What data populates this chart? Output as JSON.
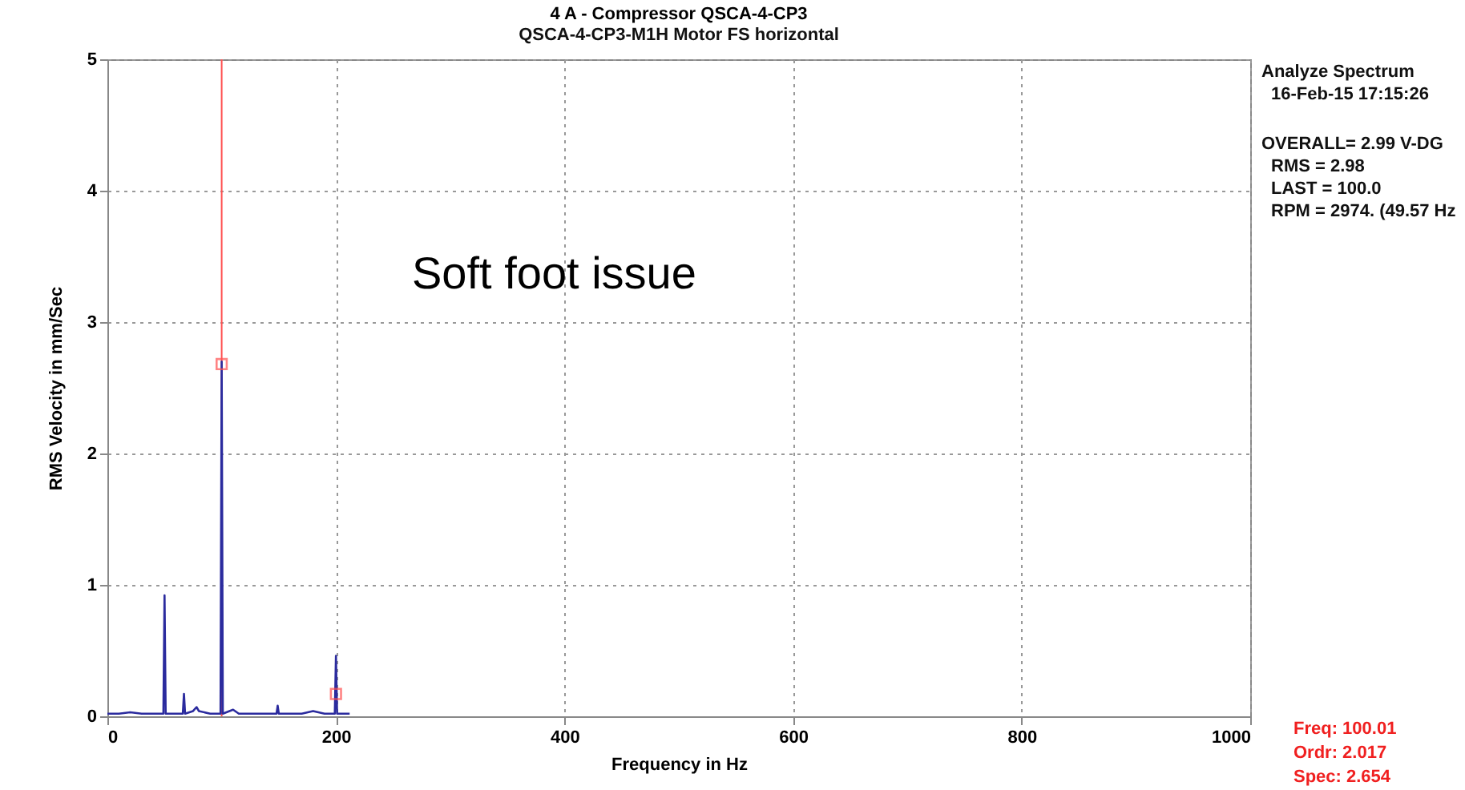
{
  "chart_data": {
    "type": "line",
    "title": "4  A - Compressor      QSCA-4-CP3",
    "subtitle": "QSCA-4-CP3-M1H   Motor FS horizontal",
    "xlabel": "Frequency in Hz",
    "ylabel": "RMS Velocity in mm/Sec",
    "series": [
      {
        "color": "#2b2b9e",
        "marker": "none",
        "x": [
          0,
          10,
          20,
          30,
          40,
          49,
          50,
          51,
          60,
          66,
          67,
          68,
          75,
          78,
          80,
          90,
          99,
          100,
          101,
          110,
          115,
          130,
          148,
          149,
          150,
          170,
          180,
          190,
          199,
          200,
          201,
          212
        ],
        "values": [
          0.02,
          0.02,
          0.03,
          0.02,
          0.02,
          0.02,
          0.92,
          0.02,
          0.02,
          0.02,
          0.17,
          0.02,
          0.04,
          0.07,
          0.04,
          0.02,
          0.02,
          2.7,
          0.02,
          0.05,
          0.02,
          0.02,
          0.02,
          0.08,
          0.02,
          0.02,
          0.04,
          0.02,
          0.02,
          0.46,
          0.02,
          0.02
        ]
      },
      {
        "type": "scatter",
        "color": "#ff5050",
        "marker": "square",
        "x": [
          100,
          200
        ],
        "values": [
          2.68,
          0.17
        ]
      }
    ],
    "ref_lines": [
      {
        "axis": "x",
        "value": 100,
        "color": "#ff5050"
      }
    ],
    "xlim": [
      0,
      1000
    ],
    "xticks": [
      0,
      200,
      400,
      600,
      800,
      1000
    ],
    "ylim": [
      0,
      5
    ],
    "yticks": [
      0,
      1,
      2,
      3,
      4,
      5
    ],
    "grid": true,
    "annotations": [
      "Soft foot issue",
      "Analyze Spectrum",
      "16-Feb-15  17:15:26",
      "OVERALL= 2.99 V-DG",
      "RMS =  2.98",
      "LAST = 100.0",
      "RPM = 2974. (49.57 Hz",
      "Freq:   100.01",
      "Ordr:    2.017",
      "Spec:    2.654"
    ]
  }
}
